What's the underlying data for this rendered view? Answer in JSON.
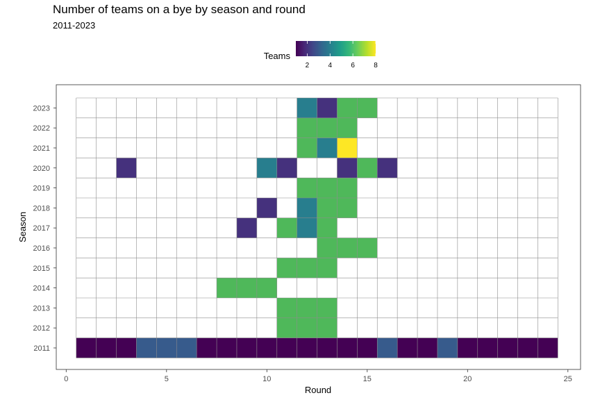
{
  "chart_data": {
    "type": "heatmap",
    "title": "Number of teams on a bye by season and round",
    "subtitle": "2011-2023",
    "xlabel": "Round",
    "ylabel": "Season",
    "xlim": [
      0,
      25
    ],
    "x_ticks": [
      0,
      5,
      10,
      15,
      20,
      25
    ],
    "rounds": [
      1,
      24
    ],
    "seasons": [
      "2011",
      "2012",
      "2013",
      "2014",
      "2015",
      "2016",
      "2017",
      "2018",
      "2019",
      "2020",
      "2021",
      "2022",
      "2023"
    ],
    "legend": {
      "title": "Teams",
      "position": "top",
      "range": [
        1,
        8
      ],
      "ticks": [
        2,
        4,
        6,
        8
      ],
      "colors": [
        "#440154",
        "#482878",
        "#3e4989",
        "#31688e",
        "#26828e",
        "#1f9e89",
        "#35b779",
        "#6ece58",
        "#b5de2b",
        "#fde725"
      ]
    },
    "colors": {
      "grid_line": "#8c8c8c",
      "panel_border": "#333333",
      "empty_cell": "#ffffff",
      "six_team_cell": "#4fb85a"
    },
    "cells": [
      {
        "season": "2011",
        "round": 1,
        "teams": 1
      },
      {
        "season": "2011",
        "round": 2,
        "teams": 1
      },
      {
        "season": "2011",
        "round": 3,
        "teams": 1
      },
      {
        "season": "2011",
        "round": 4,
        "teams": 3
      },
      {
        "season": "2011",
        "round": 5,
        "teams": 3
      },
      {
        "season": "2011",
        "round": 6,
        "teams": 3
      },
      {
        "season": "2011",
        "round": 7,
        "teams": 1
      },
      {
        "season": "2011",
        "round": 8,
        "teams": 1
      },
      {
        "season": "2011",
        "round": 9,
        "teams": 1
      },
      {
        "season": "2011",
        "round": 10,
        "teams": 1
      },
      {
        "season": "2011",
        "round": 11,
        "teams": 1
      },
      {
        "season": "2011",
        "round": 12,
        "teams": 1
      },
      {
        "season": "2011",
        "round": 13,
        "teams": 1
      },
      {
        "season": "2011",
        "round": 14,
        "teams": 1
      },
      {
        "season": "2011",
        "round": 15,
        "teams": 1
      },
      {
        "season": "2011",
        "round": 16,
        "teams": 3
      },
      {
        "season": "2011",
        "round": 17,
        "teams": 1
      },
      {
        "season": "2011",
        "round": 18,
        "teams": 1
      },
      {
        "season": "2011",
        "round": 19,
        "teams": 3
      },
      {
        "season": "2011",
        "round": 20,
        "teams": 1
      },
      {
        "season": "2011",
        "round": 21,
        "teams": 1
      },
      {
        "season": "2011",
        "round": 22,
        "teams": 1
      },
      {
        "season": "2011",
        "round": 23,
        "teams": 1
      },
      {
        "season": "2011",
        "round": 24,
        "teams": 1
      },
      {
        "season": "2012",
        "round": 11,
        "teams": 6
      },
      {
        "season": "2012",
        "round": 12,
        "teams": 6
      },
      {
        "season": "2012",
        "round": 13,
        "teams": 6
      },
      {
        "season": "2013",
        "round": 11,
        "teams": 6
      },
      {
        "season": "2013",
        "round": 12,
        "teams": 6
      },
      {
        "season": "2013",
        "round": 13,
        "teams": 6
      },
      {
        "season": "2014",
        "round": 8,
        "teams": 6
      },
      {
        "season": "2014",
        "round": 9,
        "teams": 6
      },
      {
        "season": "2014",
        "round": 10,
        "teams": 6
      },
      {
        "season": "2015",
        "round": 11,
        "teams": 6
      },
      {
        "season": "2015",
        "round": 12,
        "teams": 6
      },
      {
        "season": "2015",
        "round": 13,
        "teams": 6
      },
      {
        "season": "2016",
        "round": 13,
        "teams": 6
      },
      {
        "season": "2016",
        "round": 14,
        "teams": 6
      },
      {
        "season": "2016",
        "round": 15,
        "teams": 6
      },
      {
        "season": "2017",
        "round": 9,
        "teams": 2
      },
      {
        "season": "2017",
        "round": 11,
        "teams": 6
      },
      {
        "season": "2017",
        "round": 12,
        "teams": 4
      },
      {
        "season": "2017",
        "round": 13,
        "teams": 6
      },
      {
        "season": "2018",
        "round": 10,
        "teams": 2
      },
      {
        "season": "2018",
        "round": 12,
        "teams": 4
      },
      {
        "season": "2018",
        "round": 13,
        "teams": 6
      },
      {
        "season": "2018",
        "round": 14,
        "teams": 6
      },
      {
        "season": "2019",
        "round": 12,
        "teams": 6
      },
      {
        "season": "2019",
        "round": 13,
        "teams": 6
      },
      {
        "season": "2019",
        "round": 14,
        "teams": 6
      },
      {
        "season": "2020",
        "round": 3,
        "teams": 2
      },
      {
        "season": "2020",
        "round": 10,
        "teams": 4
      },
      {
        "season": "2020",
        "round": 11,
        "teams": 2
      },
      {
        "season": "2020",
        "round": 14,
        "teams": 2
      },
      {
        "season": "2020",
        "round": 15,
        "teams": 6
      },
      {
        "season": "2020",
        "round": 16,
        "teams": 2
      },
      {
        "season": "2021",
        "round": 12,
        "teams": 6
      },
      {
        "season": "2021",
        "round": 13,
        "teams": 4
      },
      {
        "season": "2021",
        "round": 14,
        "teams": 8
      },
      {
        "season": "2022",
        "round": 12,
        "teams": 6
      },
      {
        "season": "2022",
        "round": 13,
        "teams": 6
      },
      {
        "season": "2022",
        "round": 14,
        "teams": 6
      },
      {
        "season": "2023",
        "round": 12,
        "teams": 4
      },
      {
        "season": "2023",
        "round": 13,
        "teams": 2
      },
      {
        "season": "2023",
        "round": 14,
        "teams": 6
      },
      {
        "season": "2023",
        "round": 15,
        "teams": 6
      }
    ]
  }
}
